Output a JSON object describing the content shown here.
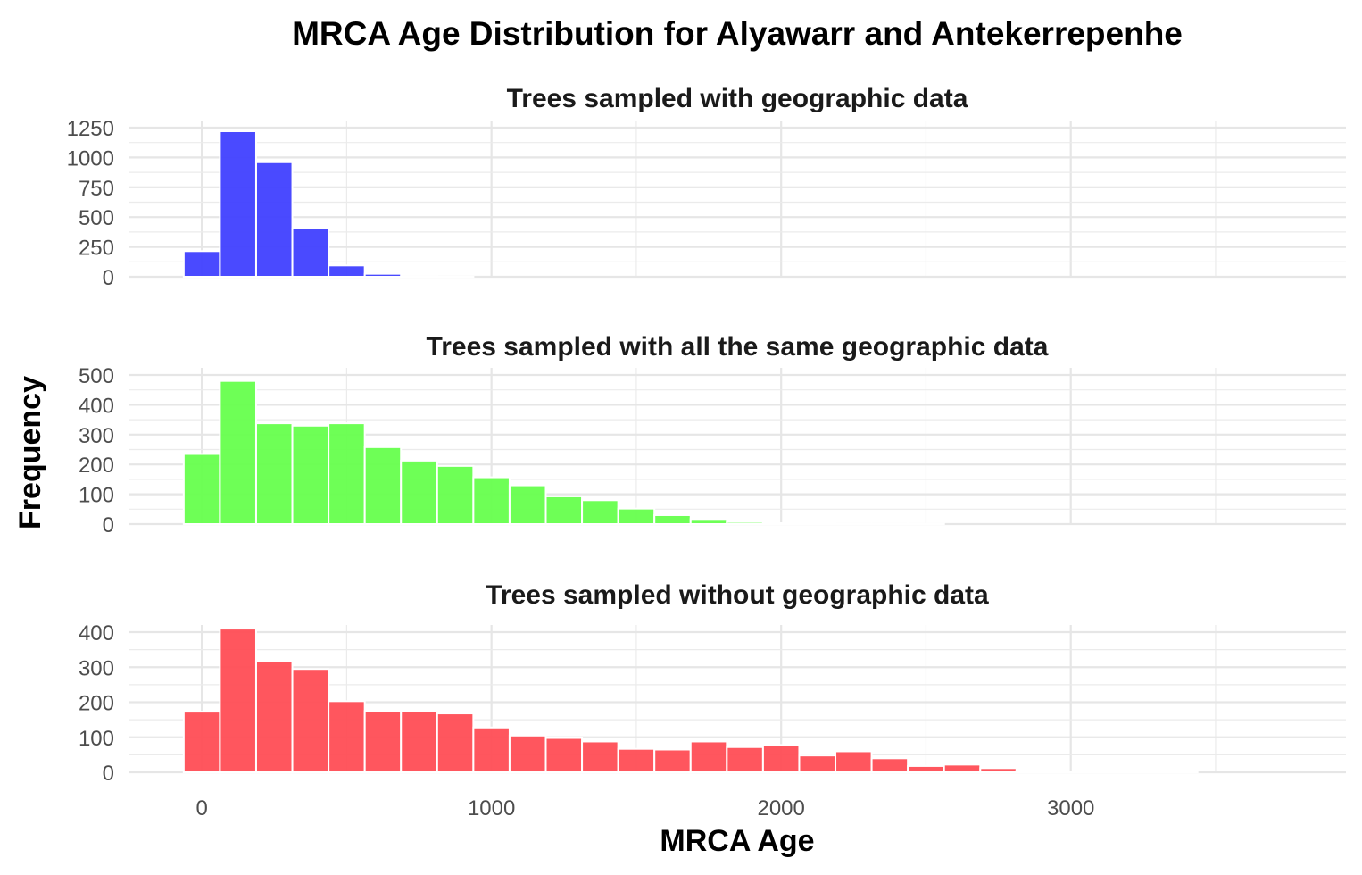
{
  "chart_data": {
    "type": "bar",
    "title": "MRCA Age Distribution for Alyawarr and Antekerrepenhe",
    "xlabel": "MRCA Age",
    "ylabel": "Frequency",
    "xlim": [
      -250,
      3950
    ],
    "x_ticks": [
      0,
      1000,
      2000,
      3000
    ],
    "bin_width": 125,
    "bin_centers": [
      0,
      125,
      250,
      375,
      500,
      625,
      750,
      875,
      1000,
      1125,
      1250,
      1375,
      1500,
      1625,
      1750,
      1875,
      2000,
      2125,
      2250,
      2375,
      2500,
      2625,
      2750,
      2875,
      3000,
      3125,
      3250,
      3375,
      3500,
      3625
    ],
    "grid": true,
    "panels": [
      {
        "subtitle": "Trees sampled with geographic data",
        "color": "#4040ff",
        "ylim": [
          0,
          1250
        ],
        "y_ticks": [
          0,
          250,
          500,
          750,
          1000,
          1250
        ],
        "values": [
          215,
          1220,
          960,
          405,
          95,
          25,
          2,
          1,
          0,
          0,
          0,
          0,
          0,
          0,
          0,
          0,
          0,
          0,
          0,
          0,
          0,
          0,
          0,
          0,
          0,
          0,
          0,
          0,
          0,
          0
        ]
      },
      {
        "subtitle": "Trees sampled with all the same geographic data",
        "color": "#66ff4d",
        "ylim": [
          0,
          500
        ],
        "y_ticks": [
          0,
          100,
          200,
          300,
          400,
          500
        ],
        "values": [
          235,
          480,
          338,
          330,
          338,
          258,
          213,
          195,
          157,
          130,
          93,
          80,
          52,
          30,
          17,
          7,
          3,
          2,
          1,
          1,
          1,
          0,
          0,
          0,
          0,
          0,
          0,
          0,
          0,
          0
        ]
      },
      {
        "subtitle": "Trees sampled without geographic data",
        "color": "#ff4d55",
        "ylim": [
          0,
          400
        ],
        "y_ticks": [
          0,
          100,
          200,
          300,
          400
        ],
        "values": [
          173,
          410,
          318,
          295,
          203,
          175,
          175,
          168,
          128,
          105,
          98,
          88,
          67,
          65,
          88,
          72,
          78,
          48,
          60,
          40,
          18,
          22,
          12,
          5,
          2,
          1,
          1,
          1,
          0,
          0
        ]
      }
    ]
  }
}
